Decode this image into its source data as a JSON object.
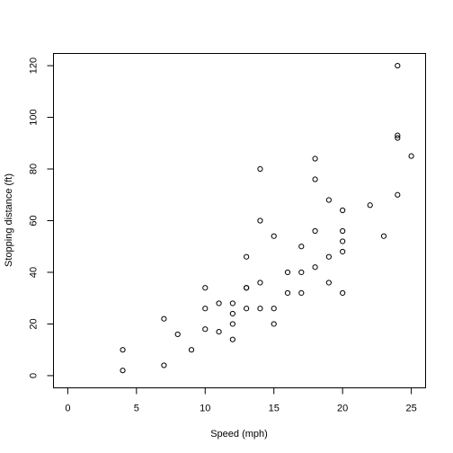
{
  "chart_data": {
    "type": "scatter",
    "title": "",
    "xlabel": "Speed (mph)",
    "ylabel": "Stopping distance (ft)",
    "xlim": [
      -1.04,
      26.04
    ],
    "ylim": [
      -4.72,
      124.72
    ],
    "xticks": [
      0,
      5,
      10,
      15,
      20,
      25
    ],
    "yticks": [
      0,
      20,
      40,
      60,
      80,
      100,
      120
    ],
    "xtick_labels": [
      "0",
      "5",
      "10",
      "15",
      "20",
      "25"
    ],
    "ytick_labels": [
      "0",
      "20",
      "40",
      "60",
      "80",
      "100",
      "120"
    ],
    "grid": false,
    "legend": "none",
    "marker": "open-circle",
    "color": "#000000",
    "points": [
      [
        4,
        2
      ],
      [
        4,
        10
      ],
      [
        7,
        4
      ],
      [
        7,
        22
      ],
      [
        8,
        16
      ],
      [
        9,
        10
      ],
      [
        10,
        18
      ],
      [
        10,
        26
      ],
      [
        10,
        34
      ],
      [
        11,
        17
      ],
      [
        11,
        28
      ],
      [
        12,
        14
      ],
      [
        12,
        20
      ],
      [
        12,
        24
      ],
      [
        12,
        28
      ],
      [
        13,
        26
      ],
      [
        13,
        34
      ],
      [
        13,
        34
      ],
      [
        13,
        46
      ],
      [
        14,
        26
      ],
      [
        14,
        36
      ],
      [
        14,
        60
      ],
      [
        14,
        80
      ],
      [
        15,
        20
      ],
      [
        15,
        26
      ],
      [
        15,
        54
      ],
      [
        16,
        32
      ],
      [
        16,
        40
      ],
      [
        17,
        32
      ],
      [
        17,
        40
      ],
      [
        17,
        50
      ],
      [
        18,
        42
      ],
      [
        18,
        56
      ],
      [
        18,
        76
      ],
      [
        18,
        84
      ],
      [
        19,
        36
      ],
      [
        19,
        46
      ],
      [
        19,
        68
      ],
      [
        20,
        32
      ],
      [
        20,
        48
      ],
      [
        20,
        52
      ],
      [
        20,
        56
      ],
      [
        20,
        64
      ],
      [
        22,
        66
      ],
      [
        23,
        54
      ],
      [
        24,
        70
      ],
      [
        24,
        92
      ],
      [
        24,
        93
      ],
      [
        24,
        120
      ],
      [
        25,
        85
      ]
    ]
  }
}
